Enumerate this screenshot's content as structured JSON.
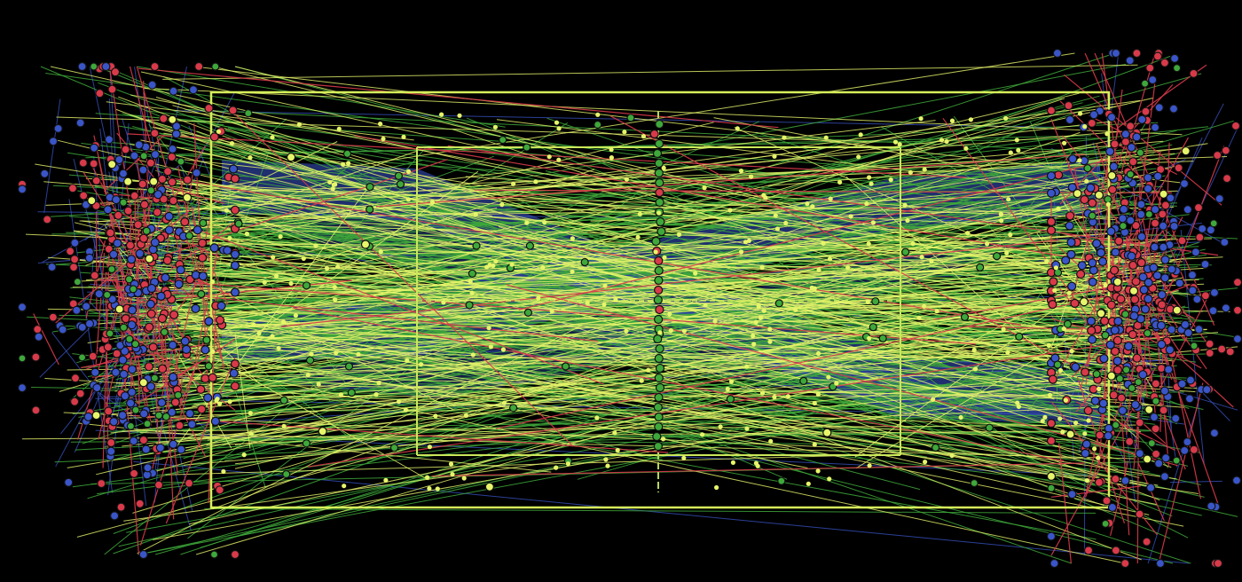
{
  "image": {
    "description_key": "tennis-shot-visualization",
    "background_color": "#000000"
  },
  "court": {
    "line_color": "#d7ef5a",
    "service_line_color": "#cbe85a",
    "net_color": "#b7d85a"
  },
  "shot_categories": [
    {
      "key": "winner",
      "color": "#e7f56a"
    },
    {
      "key": "rally",
      "color": "#3ea83a"
    },
    {
      "key": "error",
      "color": "#d83a4a"
    },
    {
      "key": "serve",
      "color": "#3a55c8"
    }
  ],
  "density": {
    "lines_per_category": {
      "winner": 240,
      "rally": 340,
      "error": 180,
      "serve": 130
    },
    "dots_per_category": {
      "winner": 280,
      "rally": 110,
      "error": 330,
      "serve": 320
    }
  }
}
